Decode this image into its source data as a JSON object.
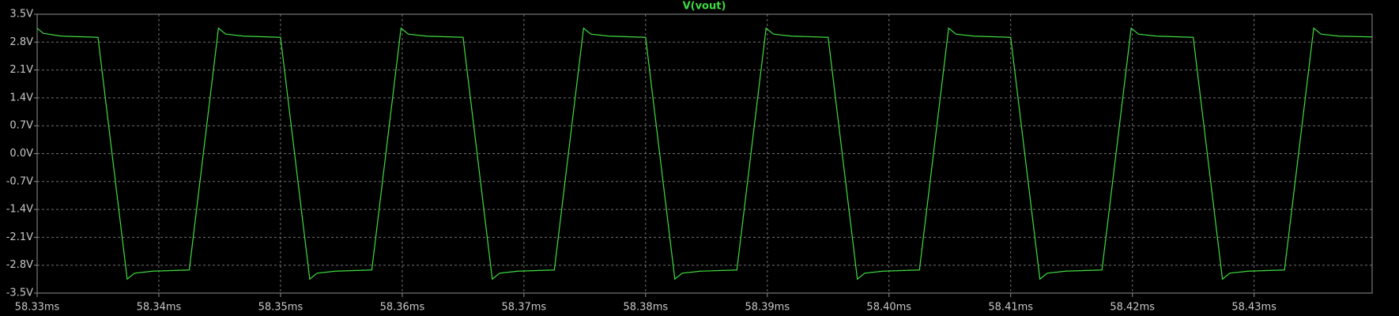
{
  "chart_data": {
    "type": "line",
    "x": [
      58.33,
      58.3305,
      58.332,
      58.335,
      58.3374,
      58.338,
      58.3395,
      58.3425,
      58.3449,
      58.3455,
      58.347,
      58.35,
      58.3524,
      58.353,
      58.3545,
      58.3575,
      58.3599,
      58.3605,
      58.362,
      58.365,
      58.3674,
      58.368,
      58.3695,
      58.3725,
      58.3749,
      58.3755,
      58.377,
      58.38,
      58.3824,
      58.383,
      58.3845,
      58.3875,
      58.3899,
      58.3905,
      58.392,
      58.395,
      58.3974,
      58.398,
      58.3995,
      58.4025,
      58.4049,
      58.4055,
      58.407,
      58.41,
      58.4124,
      58.413,
      58.4145,
      58.4175,
      58.4199,
      58.4205,
      58.422,
      58.425,
      58.4274,
      58.428,
      58.4295,
      58.4325,
      58.4349,
      58.4355,
      58.437,
      58.4397
    ],
    "series": [
      {
        "name": "V(vout)",
        "color": "#3fdc3f",
        "values": [
          3.15,
          3.02,
          2.95,
          2.92,
          -3.15,
          -3.0,
          -2.95,
          -2.92,
          3.15,
          3.0,
          2.95,
          2.92,
          -3.15,
          -3.0,
          -2.95,
          -2.92,
          3.15,
          3.0,
          2.95,
          2.92,
          -3.15,
          -3.0,
          -2.95,
          -2.92,
          3.15,
          3.0,
          2.95,
          2.92,
          -3.15,
          -3.0,
          -2.95,
          -2.92,
          3.15,
          3.0,
          2.95,
          2.92,
          -3.15,
          -3.0,
          -2.95,
          -2.92,
          3.15,
          3.0,
          2.95,
          2.92,
          -3.15,
          -3.0,
          -2.95,
          -2.92,
          3.15,
          3.0,
          2.95,
          2.92,
          -3.15,
          -3.0,
          -2.95,
          -2.92,
          3.15,
          3.0,
          2.95,
          2.93
        ]
      }
    ],
    "xlim": [
      58.33,
      58.4397
    ],
    "xticks": [
      {
        "value": 58.33,
        "label": "58.33ms"
      },
      {
        "value": 58.34,
        "label": "58.34ms"
      },
      {
        "value": 58.35,
        "label": "58.35ms"
      },
      {
        "value": 58.36,
        "label": "58.36ms"
      },
      {
        "value": 58.37,
        "label": "58.37ms"
      },
      {
        "value": 58.38,
        "label": "58.38ms"
      },
      {
        "value": 58.39,
        "label": "58.39ms"
      },
      {
        "value": 58.4,
        "label": "58.40ms"
      },
      {
        "value": 58.41,
        "label": "58.41ms"
      },
      {
        "value": 58.42,
        "label": "58.42ms"
      },
      {
        "value": 58.43,
        "label": "58.43ms"
      }
    ],
    "ylim": [
      -3.5,
      3.5
    ],
    "yticks": [
      {
        "value": 3.5,
        "label": "3.5V"
      },
      {
        "value": 2.8,
        "label": "2.8V"
      },
      {
        "value": 2.1,
        "label": "2.1V"
      },
      {
        "value": 1.4,
        "label": "1.4V"
      },
      {
        "value": 0.7,
        "label": "0.7V"
      },
      {
        "value": 0.0,
        "label": "0.0V"
      },
      {
        "value": -0.7,
        "label": "-0.7V"
      },
      {
        "value": -1.4,
        "label": "-1.4V"
      },
      {
        "value": -2.1,
        "label": "-2.1V"
      },
      {
        "value": -2.8,
        "label": "-2.8V"
      },
      {
        "value": -3.5,
        "label": "-3.5V"
      }
    ],
    "grid": true
  }
}
